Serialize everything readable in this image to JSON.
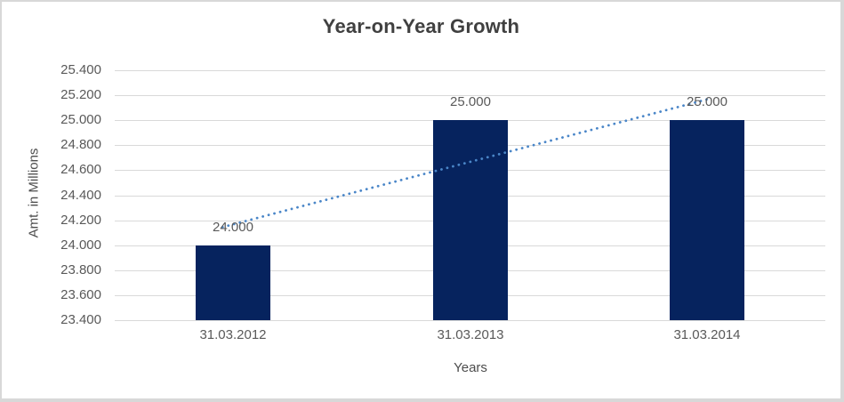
{
  "frame": {
    "background": "#FFFFFF",
    "border_color": "#D8D8D8"
  },
  "chart_data": {
    "type": "bar",
    "title": "Year-on-Year Growth",
    "categories": [
      "31.03.2012",
      "31.03.2013",
      "31.03.2014"
    ],
    "values": [
      24.0,
      25.0,
      25.0
    ],
    "data_labels": [
      "24.000",
      "25.000",
      "25.000"
    ],
    "xlabel": "Years",
    "ylabel": "Amt. in Millions",
    "ylim": [
      23.4,
      25.4
    ],
    "ytick_step": 0.2,
    "ytick_labels": [
      "23.400",
      "23.600",
      "23.800",
      "24.000",
      "24.200",
      "24.400",
      "24.600",
      "24.800",
      "25.000",
      "25.200",
      "25.400"
    ],
    "grid": true,
    "legend": "none",
    "bar_color": "#06235E",
    "trendline": {
      "type": "linear",
      "style": "dotted",
      "color": "#4A86C8",
      "values": [
        24.167,
        24.667,
        25.167
      ]
    },
    "colors": {
      "title": "#404040",
      "tick_labels": "#595959",
      "axis_titles": "#4D4D4D",
      "gridlines": "#D9D9D9",
      "data_labels": "#595959"
    }
  }
}
